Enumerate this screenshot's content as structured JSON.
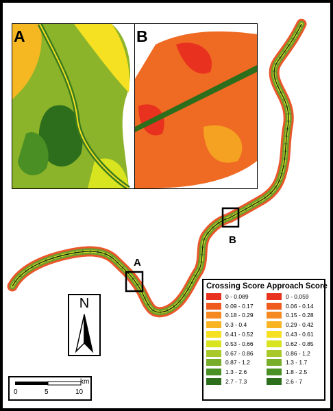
{
  "insets": [
    {
      "label": "A"
    },
    {
      "label": "B"
    }
  ],
  "map_boxes": [
    {
      "label": "A"
    },
    {
      "label": "B"
    }
  ],
  "legend": {
    "crossing": {
      "title": "Crossing Score",
      "classes": [
        "0 - 0.089",
        "0.09 - 0.17",
        "0.18 - 0.29",
        "0.3 - 0.4",
        "0.41 - 0.52",
        "0.53 - 0.66",
        "0.67 - 0.86",
        "0.87 - 1.2",
        "1.3 - 2.6",
        "2.7 - 7.3"
      ]
    },
    "approach": {
      "title": "Approach Score",
      "classes": [
        "0 - 0.059",
        "0.06 - 0.14",
        "0.15 - 0.28",
        "0.29 - 0.42",
        "0.43 - 0.61",
        "0.62 - 0.85",
        "0.86 - 1.2",
        "1.3 - 1.7",
        "1.8 - 2.5",
        "2.6 - 7"
      ]
    },
    "colors": [
      "#e8311e",
      "#ef5a1f",
      "#f58a22",
      "#f9b423",
      "#f5e021",
      "#d8e41f",
      "#a9c82a",
      "#78ad2a",
      "#4a8f24",
      "#2d6e1c"
    ]
  },
  "north_arrow": {
    "letter": "N"
  },
  "scale_bar": {
    "unit": "km",
    "ticks": [
      "0",
      "5",
      "10"
    ]
  }
}
